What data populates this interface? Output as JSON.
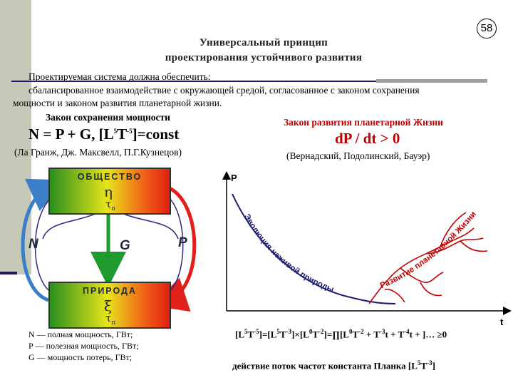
{
  "page_number": "58",
  "title": {
    "line1": "Универсальный принцип",
    "line2": "проектирования устойчивого развития"
  },
  "intro": {
    "lead": "Проектируемая система должна обеспечить:",
    "body_line1": "сбалансированное взаимодействие с окружающей средой, согласованное с законом сохранения",
    "body_line2": "мощности и законом развития планетарной жизни."
  },
  "left_law": {
    "heading": "Закон сохранения мощности",
    "equation_main": "N = P + G, [L",
    "equation_sup1": "5",
    "equation_mid": "T",
    "equation_sup2": "-5",
    "equation_end": "]=const",
    "authors": "(Ла Гранж, Дж. Максвелл, П.Г.Кузнецов)"
  },
  "right_law": {
    "heading": "Закон развития планетарной Жизни",
    "equation": "dP / dt > 0",
    "authors": "(Вернадский, Подолинский, Бауэр)"
  },
  "diagram": {
    "top_box": {
      "label": "ОБЩЕСТВО",
      "symbol": "η",
      "symbol2": "τ",
      "sub2": "о"
    },
    "bottom_box": {
      "label": "ПРИРОДА",
      "symbol": "ξ",
      "symbol2": "τ",
      "sub2": "п"
    },
    "flow_labels": {
      "N": "N",
      "G": "G",
      "P": "P"
    },
    "colors": {
      "blue_arrow": "#3a7fc8",
      "red_arrow": "#e0201a",
      "green_arrow": "#1f9a2e",
      "flow_line": "#2a2a80"
    }
  },
  "legend": [
    "N — полная мощность, ГВт;",
    "Р — полезная мощность, ГВт;",
    "G — мощность потерь, ГВт;"
  ],
  "graph": {
    "y_axis": "P",
    "x_axis": "t",
    "curve_down_label": "Эволюция неживой природы",
    "curve_up_label": "Развитие планетарной Жизни",
    "colors": {
      "down_curve": "#1c1c6e",
      "up_curve": "#c00000"
    }
  },
  "formula": {
    "p1": "[L",
    "s1": "5",
    "p2": "T",
    "s2": "-5",
    "p3": "]=[L",
    "s3": "5",
    "p4": "T",
    "s4": "-3",
    "p5": "]×[L",
    "s5": "0",
    "p6": "T",
    "s6": "-2",
    "p7": "]=∏[L",
    "s7": "0",
    "p8": "T",
    "s8": "-2",
    "p9": " + T",
    "s9": "-3",
    "p10": "t + T",
    "s10": "-4",
    "p11": "t + ]… ≥0"
  },
  "formula_legend": {
    "text": "действие  поток частот  константа Планка [L",
    "sup1": "5",
    "mid": "T",
    "sup2": "-3",
    "end": "]"
  }
}
